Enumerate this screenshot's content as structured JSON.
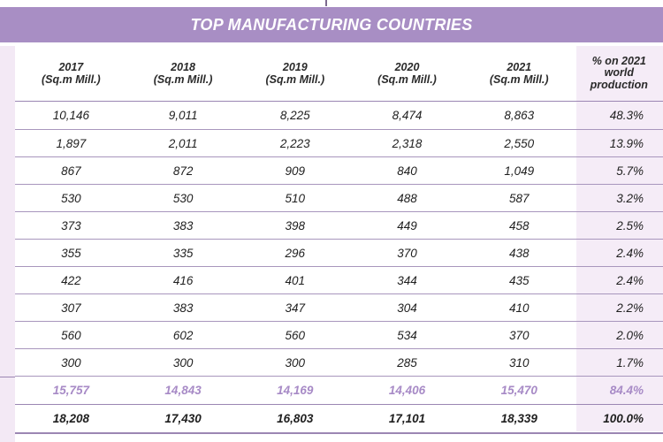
{
  "title": "TOP MANUFACTURING COUNTRIES",
  "columns": [
    {
      "year": "2017",
      "unit": "(Sq.m Mill.)"
    },
    {
      "year": "2018",
      "unit": "(Sq.m Mill.)"
    },
    {
      "year": "2019",
      "unit": "(Sq.m Mill.)"
    },
    {
      "year": "2020",
      "unit": "(Sq.m Mill.)"
    },
    {
      "year": "2021",
      "unit": "(Sq.m Mill.)"
    }
  ],
  "pct_header": [
    "% on 2021",
    "world",
    "production"
  ],
  "rows": [
    [
      "10,146",
      "9,011",
      "8,225",
      "8,474",
      "8,863",
      "48.3%"
    ],
    [
      "1,897",
      "2,011",
      "2,223",
      "2,318",
      "2,550",
      "13.9%"
    ],
    [
      "867",
      "872",
      "909",
      "840",
      "1,049",
      "5.7%"
    ],
    [
      "530",
      "530",
      "510",
      "488",
      "587",
      "3.2%"
    ],
    [
      "373",
      "383",
      "398",
      "449",
      "458",
      "2.5%"
    ],
    [
      "355",
      "335",
      "296",
      "370",
      "438",
      "2.4%"
    ],
    [
      "422",
      "416",
      "401",
      "344",
      "435",
      "2.4%"
    ],
    [
      "307",
      "383",
      "347",
      "304",
      "410",
      "2.2%"
    ],
    [
      "560",
      "602",
      "560",
      "534",
      "370",
      "2.0%"
    ],
    [
      "300",
      "300",
      "300",
      "285",
      "310",
      "1.7%"
    ]
  ],
  "subtotal": [
    "15,757",
    "14,843",
    "14,169",
    "14,406",
    "15,470",
    "84.4%"
  ],
  "total": [
    "18,208",
    "17,430",
    "16,803",
    "17,101",
    "18,339",
    "100.0%"
  ],
  "colors": {
    "header_band": "#a88ec4",
    "subtotal_text": "#a78ac6",
    "pct_column_bg": "#f5ecf7",
    "row_rule": "#a896bd"
  }
}
